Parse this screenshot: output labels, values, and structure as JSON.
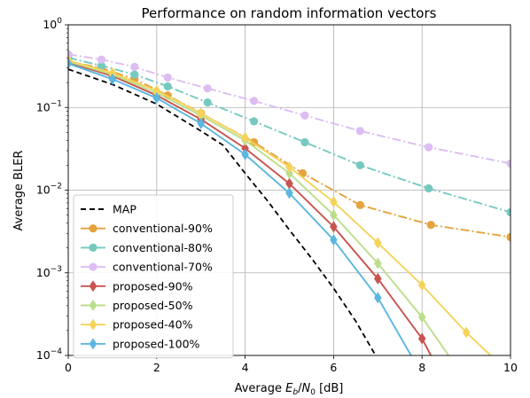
{
  "chart_data": {
    "type": "line",
    "title": "Performance on random information vectors",
    "xlabel": "Average",
    "xlabel_var": "E",
    "xlabel_sub_b": "b",
    "xlabel_slash": "/",
    "xlabel_var2": "N",
    "xlabel_sub_0": "0",
    "xlabel_unit": "[dB]",
    "ylabel": "Average BLER",
    "xlim": [
      0,
      10
    ],
    "ylim": [
      0.0001,
      1
    ],
    "yscale": "log",
    "grid": true,
    "legend_position": "lower-left",
    "x_ticks": [
      0,
      2,
      4,
      6,
      8,
      10
    ],
    "x_tick_labels": [
      "0",
      "2",
      "4",
      "6",
      "8",
      "10"
    ],
    "y_tick_labels": [
      {
        "base": "10",
        "exp": "0"
      },
      {
        "base": "10",
        "exp": "−1"
      },
      {
        "base": "10",
        "exp": "−2"
      },
      {
        "base": "10",
        "exp": "−3"
      },
      {
        "base": "10",
        "exp": "−4"
      }
    ],
    "series": [
      {
        "name": "MAP",
        "color": "#000000",
        "dash": "6,4",
        "marker": "none",
        "x": [
          0,
          1,
          2,
          3,
          3.5,
          4,
          4.5,
          5,
          5.5,
          6,
          6.5,
          6.95
        ],
        "y": [
          0.29,
          0.19,
          0.11,
          0.052,
          0.035,
          0.016,
          0.0075,
          0.0033,
          0.0015,
          0.00065,
          0.00026,
          0.0001
        ]
      },
      {
        "name": "conventional-90%",
        "color": "#E5A33E",
        "dash": "10,3,2,3",
        "marker": "circle",
        "x": [
          0,
          0.75,
          1.5,
          2.25,
          3,
          4.2,
          5.3,
          6.6,
          8.2,
          10
        ],
        "y": [
          0.36,
          0.3,
          0.22,
          0.14,
          0.085,
          0.038,
          0.016,
          0.0066,
          0.0038,
          0.0027
        ]
      },
      {
        "name": "conventional-80%",
        "color": "#76C9BF",
        "dash": "10,3,2,3",
        "marker": "circle",
        "x": [
          0,
          0.75,
          1.5,
          2.25,
          3.15,
          4.2,
          5.35,
          6.6,
          8.15,
          10
        ],
        "y": [
          0.4,
          0.32,
          0.25,
          0.18,
          0.115,
          0.068,
          0.038,
          0.02,
          0.0105,
          0.0054
        ]
      },
      {
        "name": "conventional-70%",
        "color": "#DDBDF2",
        "dash": "10,3,2,3",
        "marker": "circle",
        "x": [
          0,
          0.75,
          1.5,
          2.25,
          3.15,
          4.2,
          5.35,
          6.6,
          8.15,
          10
        ],
        "y": [
          0.44,
          0.38,
          0.31,
          0.23,
          0.17,
          0.12,
          0.08,
          0.052,
          0.033,
          0.021
        ]
      },
      {
        "name": "proposed-90%",
        "color": "#C8534F",
        "dash": "",
        "marker": "diamond",
        "x": [
          0,
          1,
          2,
          3,
          4,
          5,
          6,
          7,
          8,
          8.2
        ],
        "y": [
          0.35,
          0.24,
          0.14,
          0.072,
          0.032,
          0.012,
          0.0036,
          0.00085,
          0.00016,
          0.0001
        ]
      },
      {
        "name": "proposed-50%",
        "color": "#BCDE8B",
        "dash": "",
        "marker": "diamond",
        "x": [
          0,
          1,
          2,
          3,
          4,
          5,
          6,
          7,
          8,
          8.6
        ],
        "y": [
          0.36,
          0.25,
          0.15,
          0.08,
          0.04,
          0.016,
          0.005,
          0.0013,
          0.00029,
          0.0001
        ]
      },
      {
        "name": "proposed-40%",
        "color": "#F5D35A",
        "dash": "",
        "marker": "diamond",
        "x": [
          0,
          1,
          2,
          3,
          4,
          5,
          6,
          7,
          8,
          9,
          9.55
        ],
        "y": [
          0.37,
          0.26,
          0.16,
          0.085,
          0.043,
          0.019,
          0.0072,
          0.0023,
          0.00071,
          0.00019,
          0.0001
        ]
      },
      {
        "name": "proposed-100%",
        "color": "#5BB7E0",
        "dash": "",
        "marker": "diamond",
        "x": [
          0,
          1,
          2,
          3,
          4,
          5,
          6,
          7,
          7.75
        ],
        "y": [
          0.34,
          0.22,
          0.13,
          0.064,
          0.027,
          0.0092,
          0.0025,
          0.0005,
          0.0001
        ]
      }
    ]
  }
}
